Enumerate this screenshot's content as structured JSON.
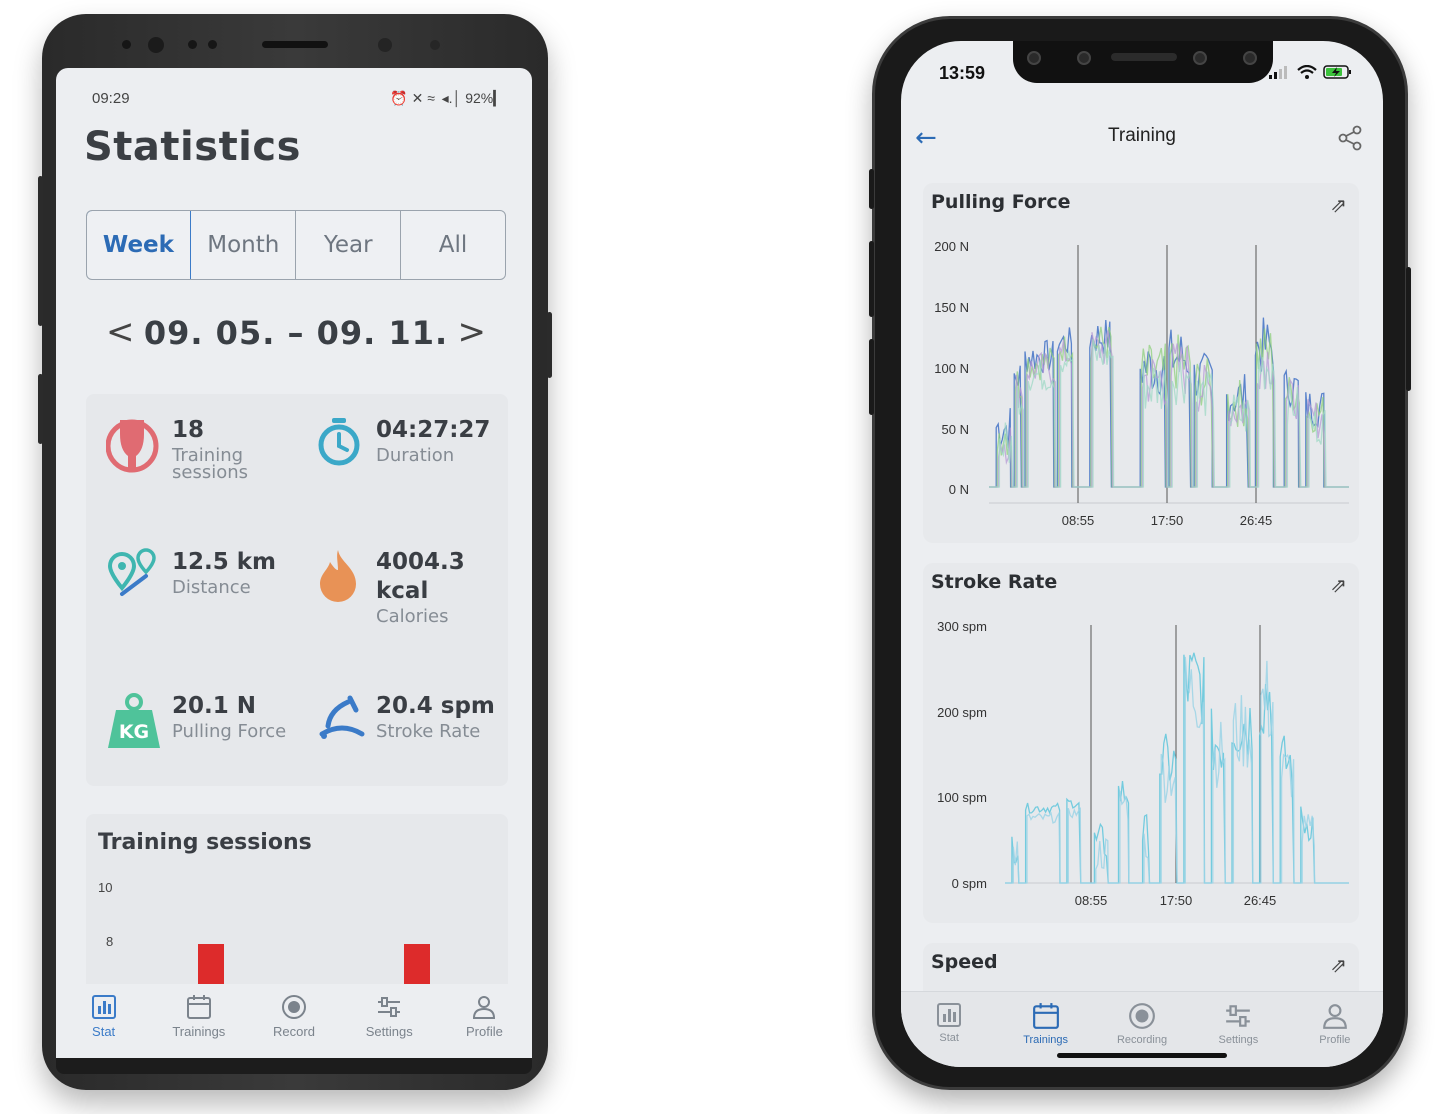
{
  "left_phone": {
    "status": {
      "time": "09:29",
      "indicators": "⏰ ✕ ≈  ◂.│ 92%▎"
    },
    "title": "Statistics",
    "tabs": [
      {
        "label": "Week",
        "active": true
      },
      {
        "label": "Month",
        "active": false
      },
      {
        "label": "Year",
        "active": false
      },
      {
        "label": "All",
        "active": false
      }
    ],
    "range": {
      "prev": "<",
      "label": "09. 05. – 09. 11.",
      "next": ">"
    },
    "stats": [
      {
        "value": "18",
        "label": "Training sessions",
        "icon": "training-icon",
        "color": "#e06b72"
      },
      {
        "value": "04:27:27",
        "label": "Duration",
        "icon": "stopwatch-icon",
        "color": "#3ba8c8"
      },
      {
        "value": "12.5 km",
        "label": "Distance",
        "icon": "map-pin-icon",
        "color": "#3fb6b0"
      },
      {
        "value": "4004.3 kcal",
        "label": "Calories",
        "icon": "flame-icon",
        "color": "#e89256"
      },
      {
        "value": "20.1 N",
        "label": "Pulling Force",
        "icon": "kg-weight-icon",
        "color": "#4fc39a"
      },
      {
        "value": "20.4 spm",
        "label": "Stroke Rate",
        "icon": "rowing-seat-icon",
        "color": "#3b7bc8"
      }
    ],
    "kg_text": "KG",
    "sessions_chart": {
      "title": "Training sessions",
      "y_ticks": [
        "10",
        "8"
      ],
      "bar_color": "#dd2b2b"
    },
    "nav": [
      {
        "label": "Stat",
        "icon": "bar-chart-icon",
        "active": true
      },
      {
        "label": "Trainings",
        "icon": "calendar-icon",
        "active": false
      },
      {
        "label": "Record",
        "icon": "record-icon",
        "active": false
      },
      {
        "label": "Settings",
        "icon": "sliders-icon",
        "active": false
      },
      {
        "label": "Profile",
        "icon": "user-icon",
        "active": false
      }
    ]
  },
  "right_phone": {
    "status": {
      "time": "13:59"
    },
    "header": {
      "title": "Training"
    },
    "charts": [
      {
        "title": "Pulling Force",
        "type": "line",
        "y_ticks": [
          "200 N",
          "150 N",
          "100 N",
          "50 N",
          "0 N"
        ],
        "x_ticks": [
          "08:55",
          "17:50",
          "26:45"
        ],
        "ylim": [
          0,
          200
        ],
        "series_colors": [
          "#4a78c8",
          "#8fcf7e",
          "#b59ad6",
          "#9fd8c6"
        ]
      },
      {
        "title": "Stroke Rate",
        "type": "line",
        "y_ticks": [
          "300 spm",
          "200 spm",
          "100 spm",
          "0 spm"
        ],
        "x_ticks": [
          "08:55",
          "17:50",
          "26:45"
        ],
        "ylim": [
          0,
          300
        ],
        "series_colors": [
          "#5ec6dc",
          "#9bd3e6"
        ]
      },
      {
        "title": "Speed"
      }
    ],
    "nav": [
      {
        "label": "Stat",
        "icon": "bar-chart-icon",
        "active": false
      },
      {
        "label": "Trainings",
        "icon": "calendar-icon",
        "active": true
      },
      {
        "label": "Recording",
        "icon": "record-icon",
        "active": false
      },
      {
        "label": "Settings",
        "icon": "sliders-icon",
        "active": false
      },
      {
        "label": "Profile",
        "icon": "user-icon",
        "active": false
      }
    ]
  }
}
